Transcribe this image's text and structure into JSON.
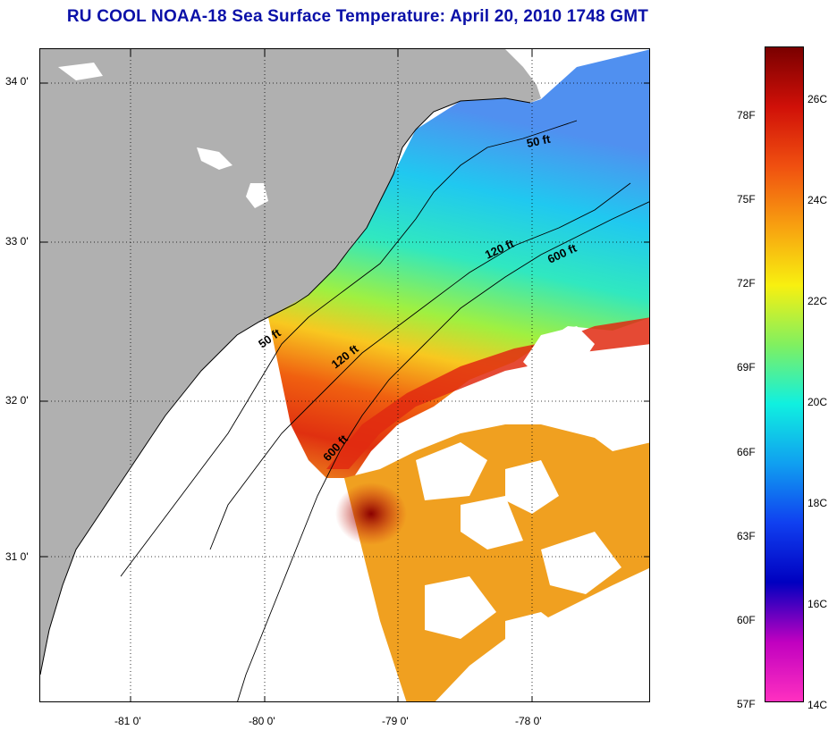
{
  "title": "RU COOL  NOAA-18  Sea Surface Temperature:  April 20, 2010 1748 GMT",
  "lat_ticks": [
    "34 0'",
    "33 0'",
    "32 0'",
    "31 0'"
  ],
  "lon_ticks": [
    "-81 0'",
    "-80 0'",
    "-79 0'",
    "-78 0'"
  ],
  "isobaths": {
    "fifty_a": "50 ft",
    "fifty_b": "50 ft",
    "onetwenty_a": "120 ft",
    "onetwenty_b": "120 ft",
    "sixhundred_a": "600 ft",
    "sixhundred_b": "600 ft"
  },
  "colorbar": {
    "fahrenheit": [
      "78F",
      "75F",
      "72F",
      "69F",
      "66F",
      "63F",
      "60F",
      "57F"
    ],
    "celsius": [
      "26C",
      "24C",
      "22C",
      "20C",
      "18C",
      "16C",
      "14C"
    ],
    "colors": [
      "#7a0000",
      "#d01008",
      "#f05010",
      "#f8a010",
      "#f8f010",
      "#80f060",
      "#10f0e0",
      "#10a0f0",
      "#1040f0",
      "#0000c0",
      "#c000c0",
      "#ff30c0"
    ]
  },
  "colors": {
    "land": "#b0b0b0",
    "title": "#0a10a8"
  }
}
